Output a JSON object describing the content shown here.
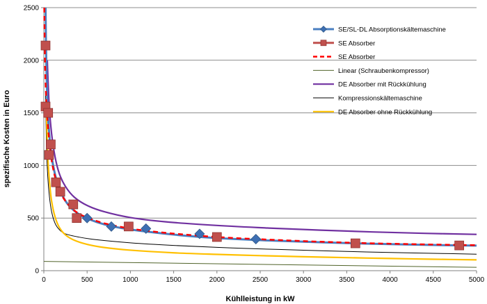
{
  "chart_data": {
    "type": "line",
    "title": "",
    "xlabel": "Kühlleistung in kW",
    "ylabel": "spezifische Kosten in Euro",
    "xlim": [
      0,
      5000
    ],
    "ylim": [
      0,
      2500
    ],
    "x_ticks": [
      "0",
      "500",
      "1000",
      "1500",
      "2000",
      "2500",
      "3000",
      "3500",
      "4000",
      "4500",
      "5000"
    ],
    "y_ticks": [
      "0",
      "500",
      "1000",
      "1500",
      "2000",
      "2500"
    ],
    "grid": "horizontal",
    "legend_position": "top-right",
    "series": [
      {
        "name": "SE/SL-DL Absorptionskältemaschine",
        "style": "line-diamond",
        "color": "#4a7fc1",
        "marker_color": "#3e6fb3",
        "points": [
          [
            500,
            500
          ],
          [
            780,
            420
          ],
          [
            1180,
            400
          ],
          [
            1800,
            350
          ],
          [
            2450,
            300
          ]
        ],
        "curve": [
          [
            20,
            2500
          ],
          [
            30,
            1900
          ],
          [
            50,
            1450
          ],
          [
            80,
            1150
          ],
          [
            120,
            950
          ],
          [
            170,
            800
          ],
          [
            230,
            690
          ],
          [
            300,
            610
          ],
          [
            400,
            540
          ],
          [
            520,
            490
          ],
          [
            700,
            440
          ],
          [
            900,
            405
          ],
          [
            1200,
            370
          ],
          [
            1600,
            335
          ],
          [
            2000,
            310
          ],
          [
            2500,
            290
          ],
          [
            3000,
            275
          ],
          [
            3500,
            262
          ],
          [
            4000,
            252
          ],
          [
            4500,
            244
          ],
          [
            5000,
            238
          ]
        ]
      },
      {
        "name": "SE Absorber",
        "style": "line-square",
        "color": "#c0504d",
        "marker_color": "#c0504d",
        "points": [
          [
            20,
            2140
          ],
          [
            20,
            1560
          ],
          [
            50,
            1500
          ],
          [
            60,
            1100
          ],
          [
            80,
            1200
          ],
          [
            140,
            840
          ],
          [
            190,
            750
          ],
          [
            340,
            630
          ],
          [
            380,
            500
          ],
          [
            980,
            420
          ],
          [
            2000,
            320
          ],
          [
            3600,
            260
          ],
          [
            4800,
            240
          ]
        ],
        "curve": []
      },
      {
        "name": "SE Absorber",
        "style": "dashed",
        "color": "#ff0000",
        "points": [],
        "curve": [
          [
            5,
            2500
          ],
          [
            15,
            1950
          ],
          [
            30,
            1600
          ],
          [
            55,
            1300
          ],
          [
            90,
            1050
          ],
          [
            140,
            860
          ],
          [
            200,
            730
          ],
          [
            280,
            630
          ],
          [
            380,
            555
          ],
          [
            500,
            505
          ],
          [
            700,
            450
          ],
          [
            1000,
            400
          ],
          [
            1400,
            360
          ],
          [
            2000,
            320
          ],
          [
            2600,
            295
          ],
          [
            3200,
            275
          ],
          [
            3800,
            260
          ],
          [
            4400,
            250
          ],
          [
            5000,
            242
          ]
        ]
      },
      {
        "name": "Linear (Schraubenkompressor)",
        "style": "line",
        "color": "#4f6228",
        "points": [],
        "curve": [
          [
            0,
            88
          ],
          [
            5000,
            32
          ]
        ]
      },
      {
        "name": "DE Absorber mit Rückkühlung",
        "style": "line",
        "color": "#7030a0",
        "points": [],
        "curve": [
          [
            40,
            2000
          ],
          [
            60,
            1600
          ],
          [
            90,
            1300
          ],
          [
            130,
            1080
          ],
          [
            180,
            920
          ],
          [
            250,
            800
          ],
          [
            350,
            700
          ],
          [
            500,
            620
          ],
          [
            700,
            560
          ],
          [
            1000,
            505
          ],
          [
            1400,
            465
          ],
          [
            2000,
            430
          ],
          [
            2600,
            405
          ],
          [
            3200,
            385
          ],
          [
            3800,
            368
          ],
          [
            4400,
            355
          ],
          [
            5000,
            345
          ]
        ]
      },
      {
        "name": "Kompressionskältemaschine",
        "style": "line",
        "color": "#000000",
        "points": [],
        "curve": [
          [
            20,
            1700
          ],
          [
            30,
            1200
          ],
          [
            45,
            900
          ],
          [
            65,
            700
          ],
          [
            90,
            560
          ],
          [
            130,
            450
          ],
          [
            180,
            390
          ],
          [
            250,
            350
          ],
          [
            400,
            320
          ],
          [
            600,
            295
          ],
          [
            1000,
            265
          ],
          [
            1500,
            240
          ],
          [
            2000,
            222
          ],
          [
            2500,
            207
          ],
          [
            3000,
            195
          ],
          [
            3500,
            183
          ],
          [
            4000,
            173
          ],
          [
            4500,
            165
          ],
          [
            5000,
            157
          ]
        ]
      },
      {
        "name": "DE Absorber ohne Rückkühlung",
        "style": "line",
        "color": "#ffc000",
        "points": [],
        "curve": [
          [
            30,
            1500
          ],
          [
            45,
            1100
          ],
          [
            65,
            850
          ],
          [
            90,
            660
          ],
          [
            130,
            510
          ],
          [
            180,
            410
          ],
          [
            250,
            340
          ],
          [
            350,
            290
          ],
          [
            500,
            250
          ],
          [
            700,
            220
          ],
          [
            1000,
            195
          ],
          [
            1500,
            170
          ],
          [
            2000,
            155
          ],
          [
            2500,
            143
          ],
          [
            3000,
            133
          ],
          [
            3500,
            124
          ],
          [
            4000,
            116
          ],
          [
            4500,
            109
          ],
          [
            5000,
            103
          ]
        ]
      }
    ]
  }
}
